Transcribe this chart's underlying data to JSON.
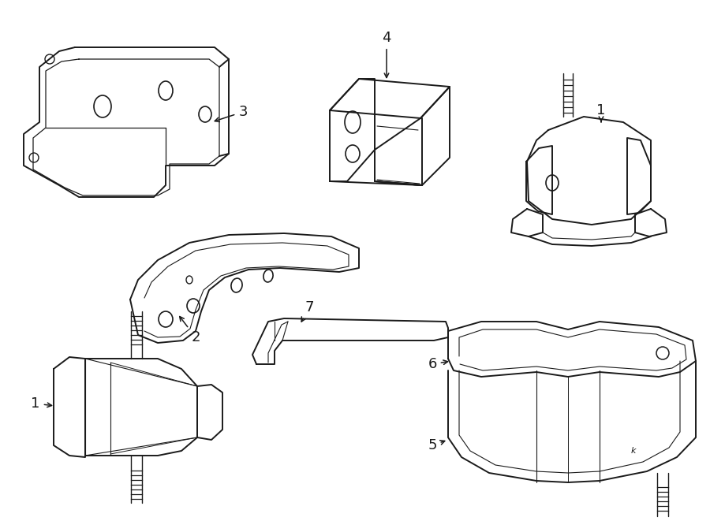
{
  "background_color": "#ffffff",
  "line_color": "#1a1a1a",
  "line_width": 1.4,
  "label_fontsize": 13
}
